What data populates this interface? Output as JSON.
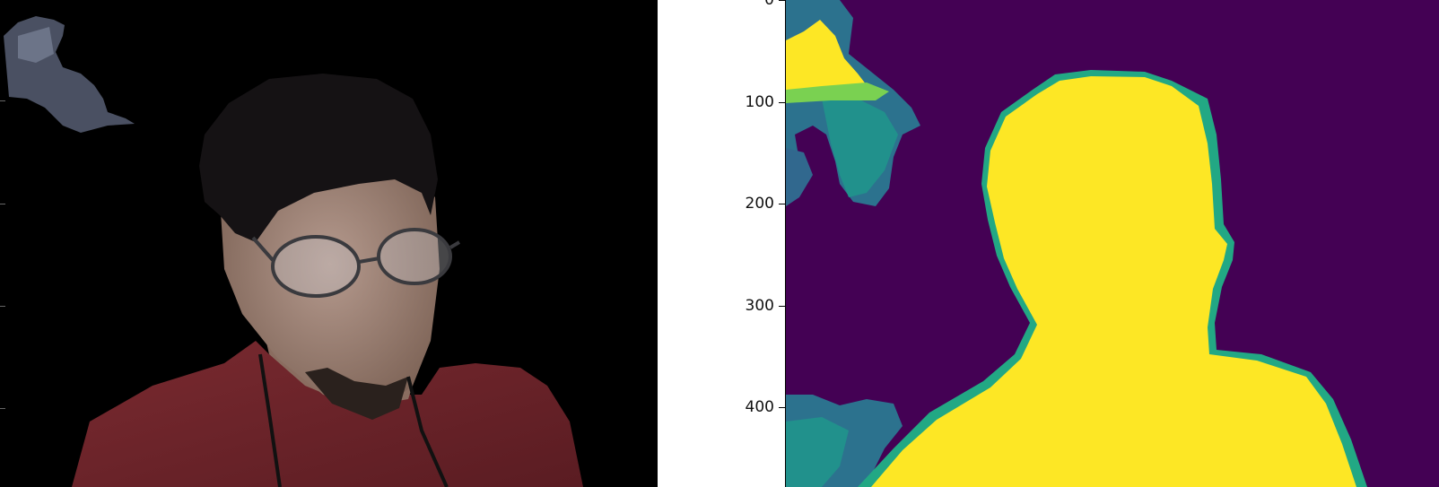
{
  "left_image": {
    "description_icon": "masked-person-photo-icon"
  },
  "right_image": {
    "colormap": "viridis",
    "colors": {
      "background": "#440154",
      "foreground": "#fde725",
      "mid": "#21918c",
      "mid2": "#2c728e"
    }
  },
  "yaxis": {
    "ticks": [
      {
        "value": 0,
        "label": "0"
      },
      {
        "value": 100,
        "label": "100"
      },
      {
        "value": 200,
        "label": "200"
      },
      {
        "value": 300,
        "label": "300"
      },
      {
        "value": 400,
        "label": "400"
      }
    ]
  }
}
